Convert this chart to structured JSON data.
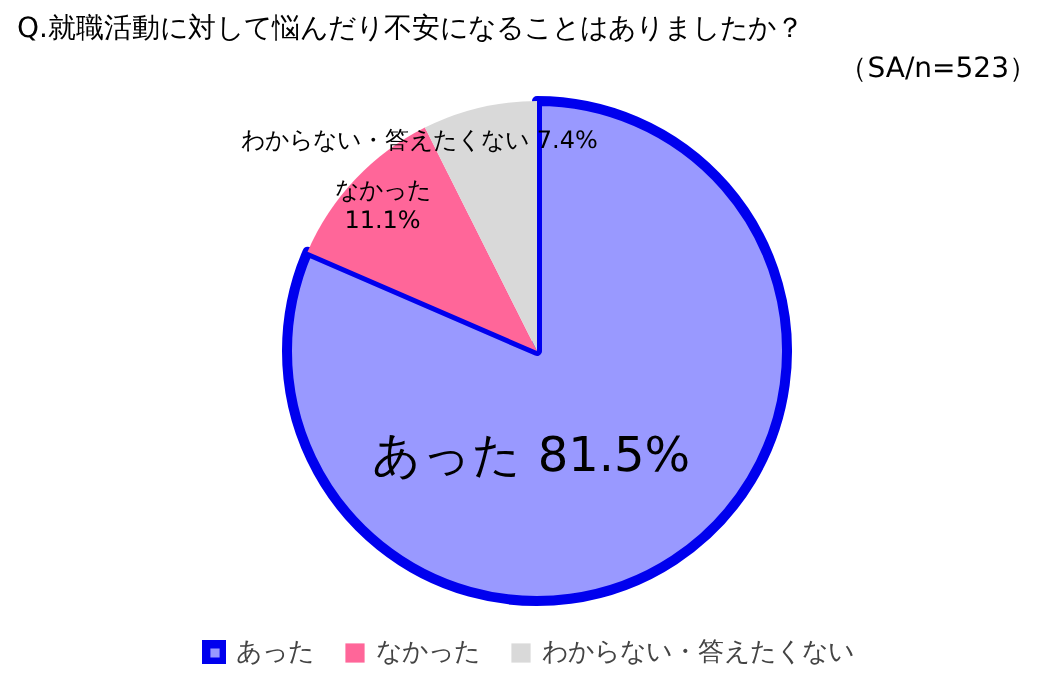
{
  "chart_data": {
    "type": "pie",
    "title": "Q.就職活動に対して悩んだり不安になることはありましたか？",
    "subtitle": "（SA/n=523）",
    "categories": [
      "あった",
      "なかった",
      "わからない・答えたくない"
    ],
    "values": [
      81.5,
      11.1,
      7.4
    ],
    "colors": [
      "#9999ff",
      "#ff6699",
      "#d9d9d9"
    ],
    "value_labels": [
      "81.5%",
      "11.1%",
      "7.4%"
    ],
    "legend": "bottom"
  }
}
